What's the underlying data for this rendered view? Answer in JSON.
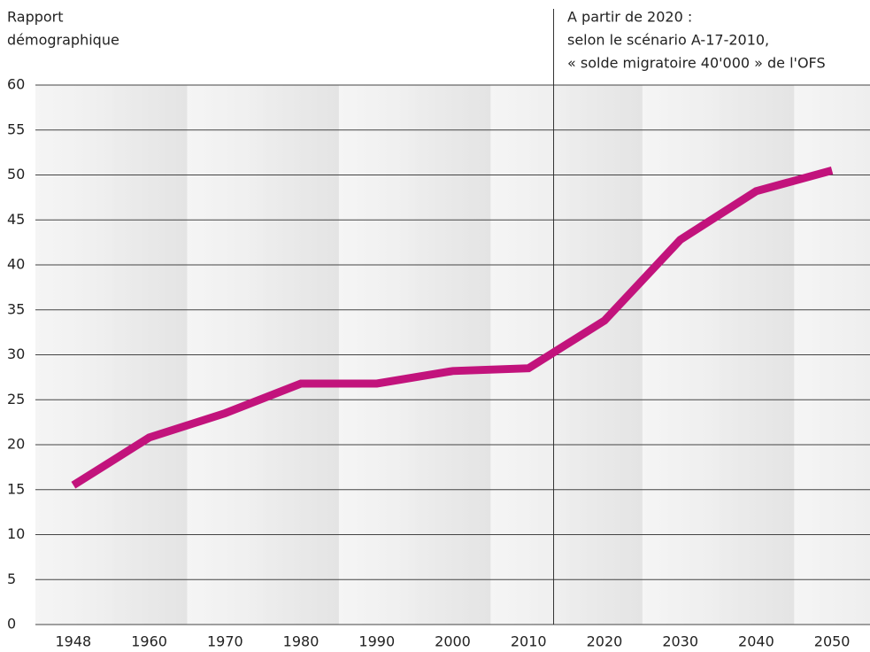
{
  "chart_data": {
    "type": "line",
    "ylabel": [
      "Rapport",
      "démographique"
    ],
    "annotation": [
      "A partir de 2020 :",
      "selon le scénario A-17-2010,",
      "« solde migratoire 40'000 » de l'OFS"
    ],
    "categories": [
      "1948",
      "1960",
      "1970",
      "1980",
      "1990",
      "2000",
      "2010",
      "2020",
      "2030",
      "2040",
      "2050"
    ],
    "series": [
      {
        "name": null,
        "color": "#c2137c",
        "values": [
          15.5,
          20.8,
          23.5,
          26.8,
          26.8,
          28.2,
          28.5,
          33.8,
          42.8,
          48.2,
          50.5
        ]
      }
    ],
    "ylim": [
      0,
      60
    ],
    "yticks": [
      0,
      5,
      10,
      15,
      20,
      25,
      30,
      35,
      40,
      45,
      50,
      55,
      60
    ],
    "grid": true
  }
}
